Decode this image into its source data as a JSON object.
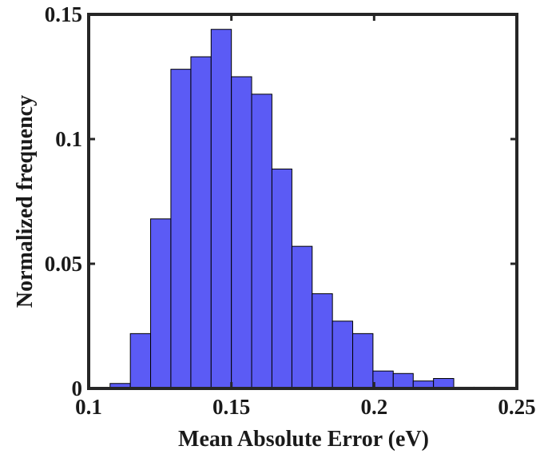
{
  "chart_data": {
    "type": "bar",
    "title": "",
    "xlabel": "Mean Absolute Error (eV)",
    "ylabel": "Normalized frequency",
    "xlim": [
      0.1,
      0.25
    ],
    "ylim": [
      0,
      0.15
    ],
    "xticks": [
      "0.1",
      "0.15",
      "0.2",
      "0.25"
    ],
    "yticks": [
      "0",
      "0.05",
      "0.1",
      "0.15"
    ],
    "grid": false,
    "legend": "none",
    "bar_color": "#5b5bf5",
    "bar_edge_color": "#000000",
    "bins": [
      {
        "x0": 0.1075,
        "x1": 0.1146,
        "value": 0.002
      },
      {
        "x0": 0.1146,
        "x1": 0.1217,
        "value": 0.022
      },
      {
        "x0": 0.1217,
        "x1": 0.1288,
        "value": 0.068
      },
      {
        "x0": 0.1288,
        "x1": 0.1358,
        "value": 0.128
      },
      {
        "x0": 0.1358,
        "x1": 0.1429,
        "value": 0.133
      },
      {
        "x0": 0.1429,
        "x1": 0.15,
        "value": 0.144
      },
      {
        "x0": 0.15,
        "x1": 0.1571,
        "value": 0.125
      },
      {
        "x0": 0.1571,
        "x1": 0.1642,
        "value": 0.118
      },
      {
        "x0": 0.1642,
        "x1": 0.1712,
        "value": 0.088
      },
      {
        "x0": 0.1712,
        "x1": 0.1783,
        "value": 0.057
      },
      {
        "x0": 0.1783,
        "x1": 0.1854,
        "value": 0.038
      },
      {
        "x0": 0.1854,
        "x1": 0.1925,
        "value": 0.027
      },
      {
        "x0": 0.1925,
        "x1": 0.1996,
        "value": 0.022
      },
      {
        "x0": 0.1996,
        "x1": 0.2067,
        "value": 0.007
      },
      {
        "x0": 0.2067,
        "x1": 0.2137,
        "value": 0.006
      },
      {
        "x0": 0.2137,
        "x1": 0.2208,
        "value": 0.003
      },
      {
        "x0": 0.2208,
        "x1": 0.2279,
        "value": 0.004
      },
      {
        "x0": 0.2279,
        "x1": 0.235,
        "value": 0.0005
      },
      {
        "x0": 0.235,
        "x1": 0.2421,
        "value": 0.0005
      },
      {
        "x0": 0.2421,
        "x1": 0.2492,
        "value": 0.0005
      }
    ]
  }
}
